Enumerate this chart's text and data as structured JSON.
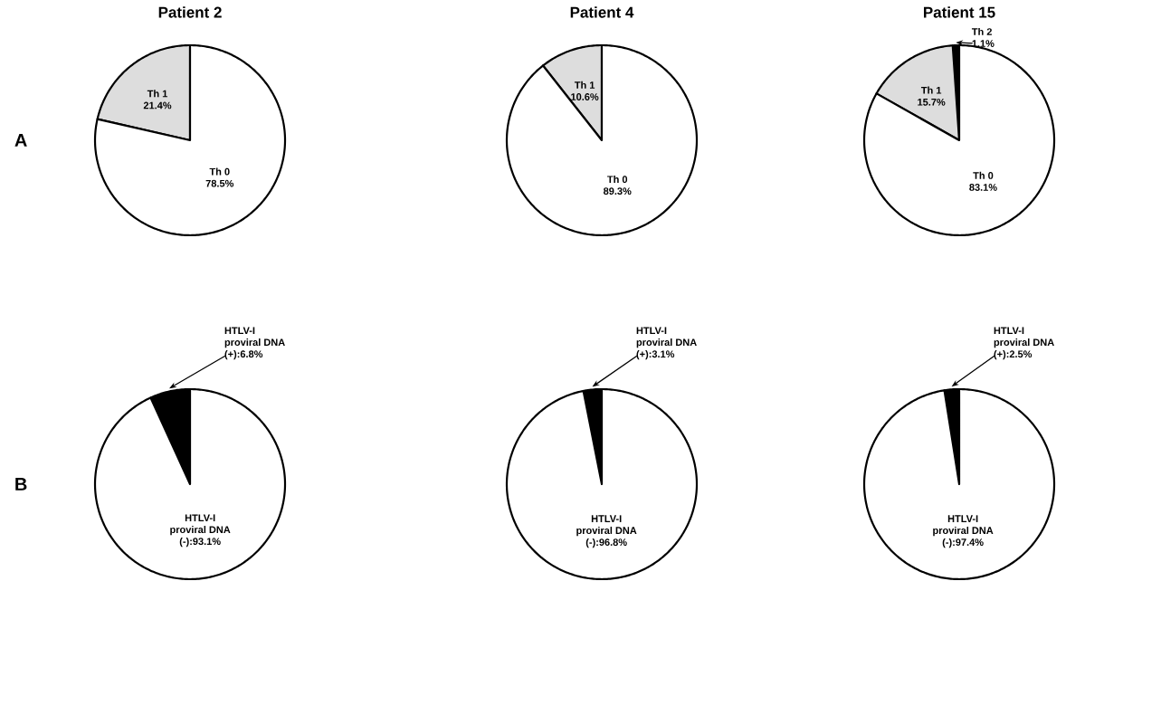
{
  "chart_data": [
    {
      "type": "pie",
      "title": "Patient 2",
      "categories": [
        "Th 1",
        "Th 0"
      ],
      "values": [
        21.4,
        78.5
      ],
      "colors": [
        "#dddddd",
        "#ffffff"
      ],
      "value_labels": [
        "21.4%",
        "78.5%"
      ],
      "annotations": [
        "A"
      ]
    },
    {
      "type": "pie",
      "title": "Patient 4",
      "categories": [
        "Th 1",
        "Th 0"
      ],
      "values": [
        10.6,
        89.3
      ],
      "colors": [
        "#dddddd",
        "#ffffff"
      ],
      "value_labels": [
        "10.6%",
        "89.3%"
      ]
    },
    {
      "type": "pie",
      "title": "Patient 15",
      "categories": [
        "Th 2",
        "Th 1",
        "Th 0"
      ],
      "values": [
        1.1,
        15.7,
        83.1
      ],
      "colors": [
        "#000000",
        "#dddddd",
        "#ffffff"
      ],
      "value_labels": [
        "1.1%",
        "15.7%",
        "83.1%"
      ]
    },
    {
      "type": "pie",
      "categories": [
        "HTLV-I proviral DNA",
        "HTLV-I proviral DNA"
      ],
      "values": [
        6.8,
        93.1
      ],
      "colors": [
        "#000000",
        "#ffffff"
      ],
      "value_labels": [
        "(+):6.8%",
        "(-):93.1%"
      ],
      "annotations": [
        "B"
      ]
    },
    {
      "type": "pie",
      "categories": [
        "HTLV-I proviral DNA",
        "HTLV-I proviral DNA"
      ],
      "values": [
        3.1,
        96.8
      ],
      "colors": [
        "#000000",
        "#ffffff"
      ],
      "value_labels": [
        "(+):3.1%",
        "(-):96.8%"
      ]
    },
    {
      "type": "pie",
      "categories": [
        "HTLV-I proviral DNA",
        "HTLV-I proviral DNA"
      ],
      "values": [
        2.5,
        97.4
      ],
      "colors": [
        "#000000",
        "#ffffff"
      ],
      "value_labels": [
        "(+):2.5%",
        "(-):97.4%"
      ]
    }
  ]
}
